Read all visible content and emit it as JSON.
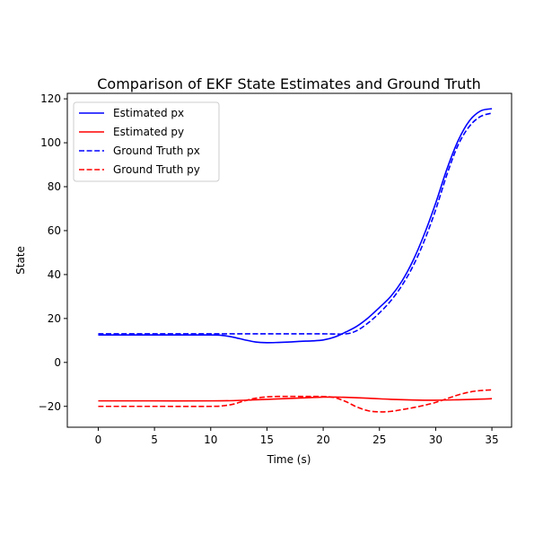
{
  "chart_data": {
    "type": "line",
    "title": "Comparison of EKF State Estimates and Ground Truth",
    "xlabel": "Time (s)",
    "ylabel": "State",
    "xlim": [
      -2.75,
      36.75
    ],
    "ylim": [
      -29.5,
      122.5
    ],
    "xticks": [
      0,
      5,
      10,
      15,
      20,
      25,
      30,
      35
    ],
    "yticks": [
      -20,
      0,
      20,
      40,
      60,
      80,
      100,
      120
    ],
    "grid": false,
    "legend_position": "upper-left",
    "series": [
      {
        "name": "Estimated px",
        "color": "#0000ff",
        "style": "solid",
        "x": [
          0,
          5,
          10,
          11,
          12,
          13,
          14,
          15,
          16,
          17,
          18,
          19,
          20,
          21,
          22,
          23,
          24,
          25,
          26,
          27,
          28,
          29,
          30,
          31,
          32,
          33,
          34,
          35
        ],
        "y": [
          12.5,
          12.5,
          12.5,
          12.3,
          11.5,
          10.3,
          9.3,
          9.0,
          9.1,
          9.3,
          9.6,
          9.8,
          10.2,
          11.5,
          13.8,
          16.5,
          20.3,
          25.0,
          30.0,
          37.0,
          46.5,
          58.5,
          72.5,
          88.0,
          101.0,
          110.0,
          114.5,
          115.5
        ]
      },
      {
        "name": "Estimated py",
        "color": "#ff0000",
        "style": "solid",
        "x": [
          0,
          5,
          10,
          12,
          14,
          16,
          18,
          20,
          21,
          22,
          24,
          26,
          28,
          30,
          32,
          34,
          35
        ],
        "y": [
          -17.5,
          -17.5,
          -17.5,
          -17.4,
          -17.0,
          -16.6,
          -16.2,
          -15.8,
          -15.8,
          -15.9,
          -16.3,
          -16.8,
          -17.1,
          -17.2,
          -17.0,
          -16.7,
          -16.5
        ]
      },
      {
        "name": "Ground Truth px",
        "color": "#0000ff",
        "style": "dashed",
        "x": [
          0,
          5,
          10,
          15,
          20,
          22,
          23,
          24,
          25,
          26,
          27,
          28,
          29,
          30,
          31,
          32,
          33,
          34,
          35
        ],
        "y": [
          13.0,
          13.0,
          13.0,
          13.0,
          13.0,
          13.0,
          14.5,
          18.0,
          22.5,
          28.0,
          35.0,
          44.0,
          55.5,
          69.5,
          85.5,
          99.0,
          107.5,
          112.0,
          113.5
        ]
      },
      {
        "name": "Ground Truth py",
        "color": "#ff0000",
        "style": "dashed",
        "x": [
          0,
          5,
          10,
          11,
          12,
          13,
          14,
          15,
          16,
          17,
          18,
          19,
          20,
          21,
          22,
          23,
          24,
          25,
          26,
          27,
          28,
          29,
          30,
          31,
          32,
          33,
          34,
          35
        ],
        "y": [
          -20,
          -20,
          -20,
          -19.8,
          -19.0,
          -17.5,
          -16.3,
          -15.7,
          -15.5,
          -15.5,
          -15.5,
          -15.5,
          -15.5,
          -16.0,
          -17.8,
          -20.3,
          -22.0,
          -22.5,
          -22.3,
          -21.5,
          -20.6,
          -19.5,
          -18.2,
          -16.5,
          -14.8,
          -13.5,
          -12.8,
          -12.5
        ]
      }
    ]
  }
}
